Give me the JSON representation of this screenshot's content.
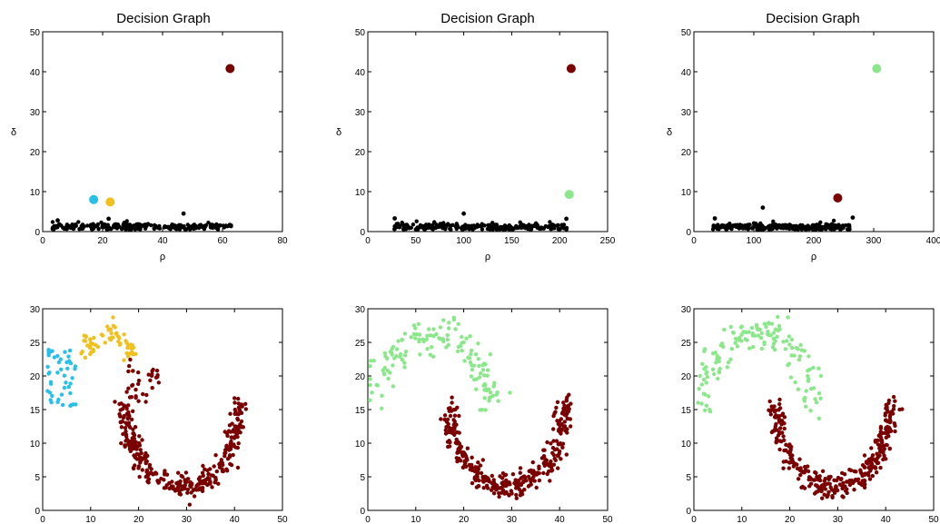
{
  "colors": {
    "black": "#000000",
    "dark_red": "#7a0000",
    "cyan": "#28c0e8",
    "gold": "#f2c01e",
    "light_green": "#8ae88a"
  },
  "chart_data": [
    {
      "type": "scatter",
      "title": "Decision Graph",
      "xlabel": "ρ",
      "ylabel": "δ",
      "xlim": [
        0,
        80
      ],
      "ylim": [
        0,
        50
      ],
      "xticks": [
        "0",
        "20",
        "40",
        "60",
        "80"
      ],
      "yticks": [
        "0",
        "10",
        "20",
        "30",
        "40",
        "50"
      ],
      "grid": false,
      "centers": [
        {
          "x": 62.5,
          "y": 40.8,
          "color": "dark_red"
        },
        {
          "x": 17,
          "y": 8,
          "color": "cyan"
        },
        {
          "x": 22.5,
          "y": 7.4,
          "color": "gold"
        }
      ],
      "cloud": {
        "x_range": [
          3,
          63
        ],
        "y_typical": 1.5,
        "outliers": [
          [
            47,
            4.5
          ],
          [
            22,
            3.2
          ],
          [
            5,
            2.8
          ]
        ]
      }
    },
    {
      "type": "scatter",
      "title": "Decision Graph",
      "xlabel": "ρ",
      "ylabel": "δ",
      "xlim": [
        0,
        250
      ],
      "ylim": [
        0,
        50
      ],
      "xticks": [
        "0",
        "50",
        "100",
        "150",
        "200",
        "250"
      ],
      "yticks": [
        "0",
        "10",
        "20",
        "30",
        "40",
        "50"
      ],
      "grid": false,
      "centers": [
        {
          "x": 212,
          "y": 40.8,
          "color": "dark_red"
        },
        {
          "x": 210,
          "y": 9.3,
          "color": "light_green"
        }
      ],
      "cloud": {
        "x_range": [
          25,
          210
        ],
        "y_typical": 1.4,
        "outliers": [
          [
            100,
            4.5
          ],
          [
            28,
            3.3
          ],
          [
            207,
            3.2
          ]
        ]
      }
    },
    {
      "type": "scatter",
      "title": "Decision Graph",
      "xlabel": "ρ",
      "ylabel": "δ",
      "xlim": [
        0,
        400
      ],
      "ylim": [
        0,
        50
      ],
      "xticks": [
        "0",
        "100",
        "200",
        "300",
        "400"
      ],
      "yticks": [
        "0",
        "10",
        "20",
        "30",
        "40",
        "50"
      ],
      "grid": false,
      "centers": [
        {
          "x": 305,
          "y": 40.8,
          "color": "light_green"
        },
        {
          "x": 240,
          "y": 8.4,
          "color": "dark_red"
        }
      ],
      "cloud": {
        "x_range": [
          30,
          260
        ],
        "y_typical": 1.4,
        "outliers": [
          [
            115,
            6
          ],
          [
            265,
            3.5
          ],
          [
            35,
            3.3
          ]
        ]
      }
    },
    {
      "type": "scatter",
      "title": "",
      "xlim": [
        0,
        50
      ],
      "ylim": [
        0,
        30
      ],
      "xticks": [
        "0",
        "10",
        "20",
        "30",
        "40",
        "50"
      ],
      "yticks": [
        "0",
        "5",
        "10",
        "15",
        "20",
        "25",
        "30"
      ],
      "grid": false,
      "clusters": [
        {
          "shape": "left_blob",
          "color": "cyan",
          "x_range": [
            0,
            7
          ],
          "y_range": [
            15,
            24
          ]
        },
        {
          "shape": "top_arc",
          "color": "gold",
          "x_range": [
            8,
            20
          ],
          "y_range": [
            20,
            28
          ]
        },
        {
          "shape": "small_blob",
          "color": "dark_red",
          "x_range": [
            17,
            25
          ],
          "y_range": [
            16,
            23
          ]
        },
        {
          "shape": "moon_down",
          "color": "dark_red",
          "x_range": [
            17,
            41
          ],
          "y_range": [
            3,
            17
          ]
        }
      ]
    },
    {
      "type": "scatter",
      "title": "",
      "xlim": [
        0,
        50
      ],
      "ylim": [
        0,
        30
      ],
      "xticks": [
        "0",
        "10",
        "20",
        "30",
        "40",
        "50"
      ],
      "yticks": [
        "0",
        "5",
        "10",
        "15",
        "20",
        "25",
        "30"
      ],
      "grid": false,
      "clusters": [
        {
          "shape": "moon_up",
          "color": "light_green",
          "x_range": [
            0,
            27
          ],
          "y_range": [
            15,
            28
          ]
        },
        {
          "shape": "moon_down",
          "color": "dark_red",
          "x_range": [
            17,
            41
          ],
          "y_range": [
            3,
            17
          ]
        }
      ]
    },
    {
      "type": "scatter",
      "title": "",
      "xlim": [
        0,
        50
      ],
      "ylim": [
        0,
        30
      ],
      "xticks": [
        "0",
        "10",
        "20",
        "30",
        "40",
        "50"
      ],
      "yticks": [
        "0",
        "5",
        "10",
        "15",
        "20",
        "25",
        "30"
      ],
      "grid": false,
      "clusters": [
        {
          "shape": "moon_up",
          "color": "light_green",
          "x_range": [
            0,
            27
          ],
          "y_range": [
            15,
            28
          ]
        },
        {
          "shape": "moon_down",
          "color": "dark_red",
          "x_range": [
            17,
            41
          ],
          "y_range": [
            3,
            17
          ]
        }
      ]
    }
  ]
}
